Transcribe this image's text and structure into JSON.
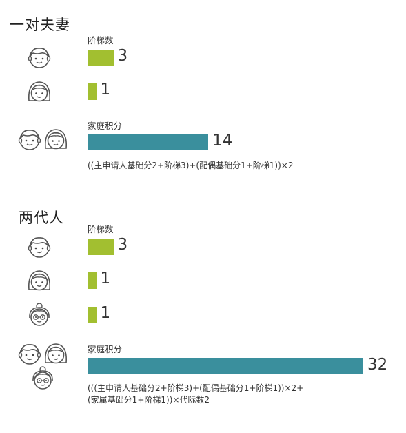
{
  "colors": {
    "step_bar": "#a2bf30",
    "score_bar": "#3a8f9d",
    "text": "#222222"
  },
  "groups": [
    {
      "title": "一对夫妻",
      "steps_label": "阶梯数",
      "members": [
        {
          "role": "man-face-icon",
          "steps": 3,
          "steps_text": "3"
        },
        {
          "role": "woman-face-icon",
          "steps": 1,
          "steps_text": "1"
        }
      ],
      "score_label": "家庭积分",
      "score": 14,
      "score_text": "14",
      "formula_lines": [
        "((主申请人基础分2+阶梯3)+(配偶基础分1+阶梯1))×2"
      ]
    },
    {
      "title": "两代人",
      "steps_label": "阶梯数",
      "members": [
        {
          "role": "man-face-icon",
          "steps": 3,
          "steps_text": "3"
        },
        {
          "role": "woman-face-icon",
          "steps": 1,
          "steps_text": "1"
        },
        {
          "role": "elder-face-icon",
          "steps": 1,
          "steps_text": "1"
        }
      ],
      "score_label": "家庭积分",
      "score": 32,
      "score_text": "32",
      "formula_lines": [
        "(((主申请人基础分2+阶梯3)+(配偶基础分1+阶梯1))×2+",
        "(家属基础分1+阶梯1))×代际数2"
      ]
    }
  ],
  "chart_data": [
    {
      "type": "bar",
      "title": "一对夫妻",
      "series": [
        {
          "name": "阶梯数",
          "values": [
            3,
            1
          ]
        },
        {
          "name": "家庭积分",
          "values": [
            14
          ]
        }
      ]
    },
    {
      "type": "bar",
      "title": "两代人",
      "series": [
        {
          "name": "阶梯数",
          "values": [
            3,
            1,
            1
          ]
        },
        {
          "name": "家庭积分",
          "values": [
            32
          ]
        }
      ]
    }
  ]
}
